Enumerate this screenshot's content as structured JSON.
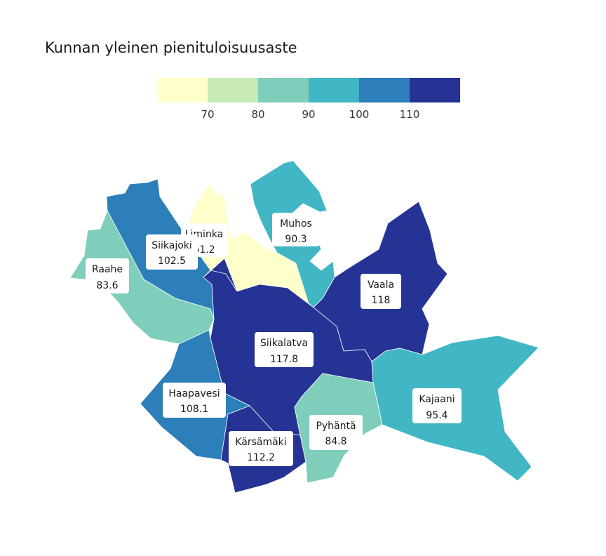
{
  "chart_data": {
    "type": "choropleth",
    "title": "Kunnan yleinen pienituloisuusaste",
    "legend": {
      "colors": [
        "#ffffcc",
        "#c7e9b4",
        "#7fcdbb",
        "#41b6c4",
        "#2c7fb8",
        "#253494"
      ],
      "ticks": [
        "70",
        "80",
        "90",
        "100",
        "110"
      ]
    },
    "regions": [
      {
        "name": "Liminka",
        "value": "61.2",
        "color": "#ffffcc"
      },
      {
        "name": "Muhos",
        "value": "90.3",
        "color": "#41b6c4"
      },
      {
        "name": "Siikajoki",
        "value": "102.5",
        "color": "#2c7fb8"
      },
      {
        "name": "Raahe",
        "value": "83.6",
        "color": "#7fcdbb"
      },
      {
        "name": "Vaala",
        "value": "118",
        "color": "#253494"
      },
      {
        "name": "Siikalatva",
        "value": "117.8",
        "color": "#253494"
      },
      {
        "name": "Haapavesi",
        "value": "108.1",
        "color": "#2c7fb8"
      },
      {
        "name": "Kajaani",
        "value": "95.4",
        "color": "#41b6c4"
      },
      {
        "name": "Pyhäntä",
        "value": "84.8",
        "color": "#7fcdbb"
      },
      {
        "name": "Kärsämäki",
        "value": "112.2",
        "color": "#253494"
      }
    ]
  }
}
